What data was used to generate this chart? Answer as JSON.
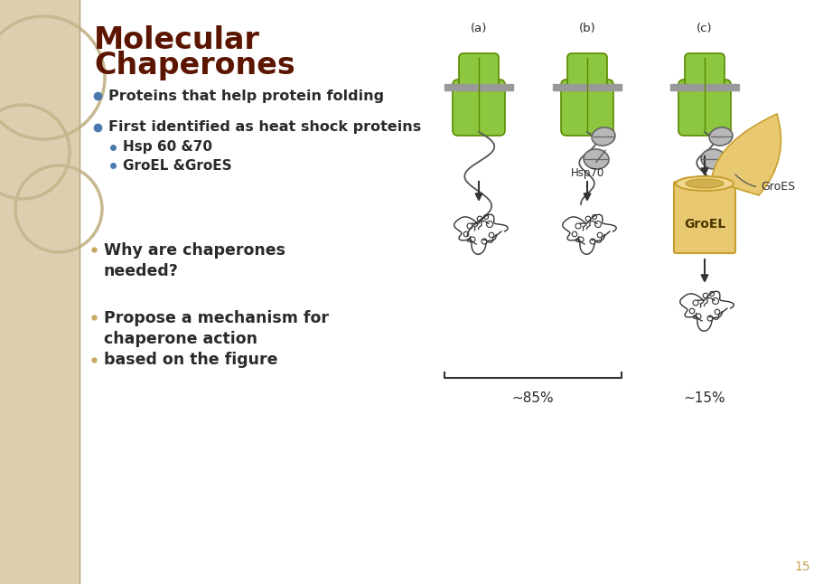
{
  "bg_color": "#ffffff",
  "sidebar_color": "#dccfb0",
  "title_line1": "Molecular",
  "title_line2": "Chaperones",
  "title_color": "#5b1500",
  "bullet_color": "#4a7aad",
  "text_color": "#1a1a2e",
  "dark_text": "#2a2a2a",
  "bullets": [
    "Proteins that help protein folding",
    "First identified as heat shock proteins"
  ],
  "sub_bullets": [
    "Hsp 60 &70",
    "GroEL &GroES"
  ],
  "bottom_bullets_1": "Why are chaperones\nneeded?",
  "bottom_bullets_2": "Propose a mechanism for\nchaperone action",
  "bottom_bullets_3": "based on the figure",
  "labels_abc": [
    "(a)",
    "(b)",
    "(c)"
  ],
  "label_hsp70": "Hsp70",
  "label_groes": "GroES",
  "label_groel": "GroEL",
  "label_85": "~85%",
  "label_15": "~15%",
  "green_color": "#8dc63f",
  "green_edge": "#5a8a00",
  "gray_color": "#b8b8b8",
  "gray_edge": "#666666",
  "yellow_color": "#e8c870",
  "yellow_edge": "#c8a030",
  "page_num": "15",
  "page_num_color": "#c8a050"
}
